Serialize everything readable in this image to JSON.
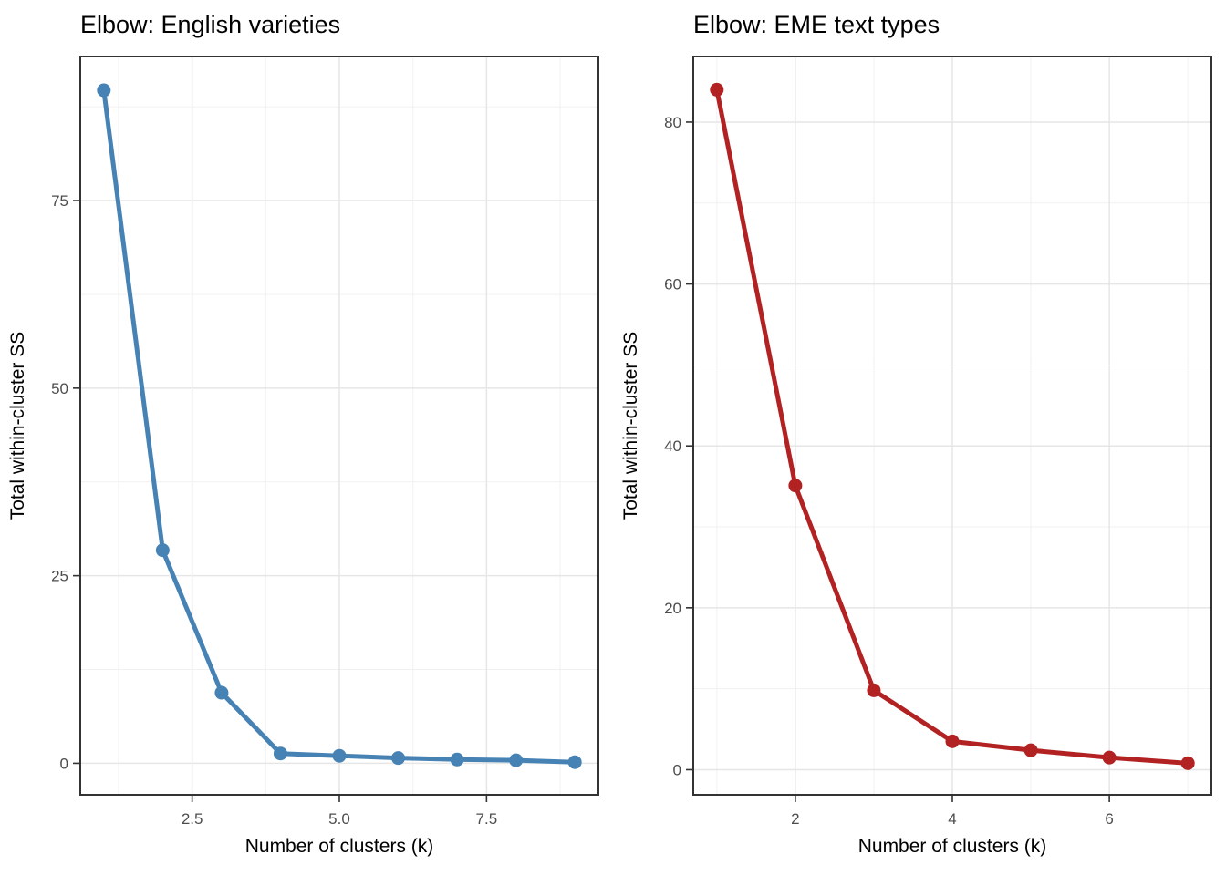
{
  "figure": {
    "background": "#FFFFFF",
    "title_color": "#000000",
    "axis_title_color": "#000000",
    "tick_label_color": "#4D4D4D",
    "grid_major_color": "#E6E6E6",
    "grid_minor_color": "#F1F1F1",
    "panel_border_color": "#333333",
    "tick_mark_color": "#333333",
    "panel_background": "#FFFFFF"
  },
  "chart_data": [
    {
      "type": "line",
      "title": "Elbow: English varieties",
      "xlabel": "Number of clusters (k)",
      "ylabel": "Total within-cluster SS",
      "series_color": "#4682B4",
      "x": [
        1,
        2,
        3,
        4,
        5,
        6,
        7,
        8,
        9
      ],
      "values": [
        89.7,
        28.4,
        9.4,
        1.3,
        1.0,
        0.7,
        0.5,
        0.4,
        0.15
      ],
      "xlim": [
        0.6,
        9.4
      ],
      "ylim": [
        -4.2,
        94.2
      ],
      "x_ticks": [
        2.5,
        5.0,
        7.5
      ],
      "x_tick_labels": [
        "2.5",
        "5.0",
        "7.5"
      ],
      "x_minor": [
        1.25,
        3.75,
        6.25,
        8.75
      ],
      "y_ticks": [
        0,
        25,
        50,
        75
      ],
      "y_tick_labels": [
        "0",
        "25",
        "50",
        "75"
      ],
      "y_minor": [
        12.5,
        37.5,
        62.5,
        87.5
      ],
      "grid": true,
      "legend": "none",
      "marker": "circle"
    },
    {
      "type": "line",
      "title": "Elbow: EME text types",
      "xlabel": "Number of clusters (k)",
      "ylabel": "Total within-cluster SS",
      "series_color": "#B22222",
      "x": [
        1,
        2,
        3,
        4,
        5,
        6,
        7
      ],
      "values": [
        84.0,
        35.1,
        9.8,
        3.5,
        2.4,
        1.5,
        0.8
      ],
      "xlim": [
        0.7,
        7.3
      ],
      "ylim": [
        -3.1,
        88.1
      ],
      "x_ticks": [
        2,
        4,
        6
      ],
      "x_tick_labels": [
        "2",
        "4",
        "6"
      ],
      "x_minor": [
        1,
        3,
        5,
        7
      ],
      "y_ticks": [
        0,
        20,
        40,
        60,
        80
      ],
      "y_tick_labels": [
        "0",
        "20",
        "40",
        "60",
        "80"
      ],
      "y_minor": [
        10,
        30,
        50,
        70
      ],
      "grid": true,
      "legend": "none",
      "marker": "circle"
    }
  ]
}
